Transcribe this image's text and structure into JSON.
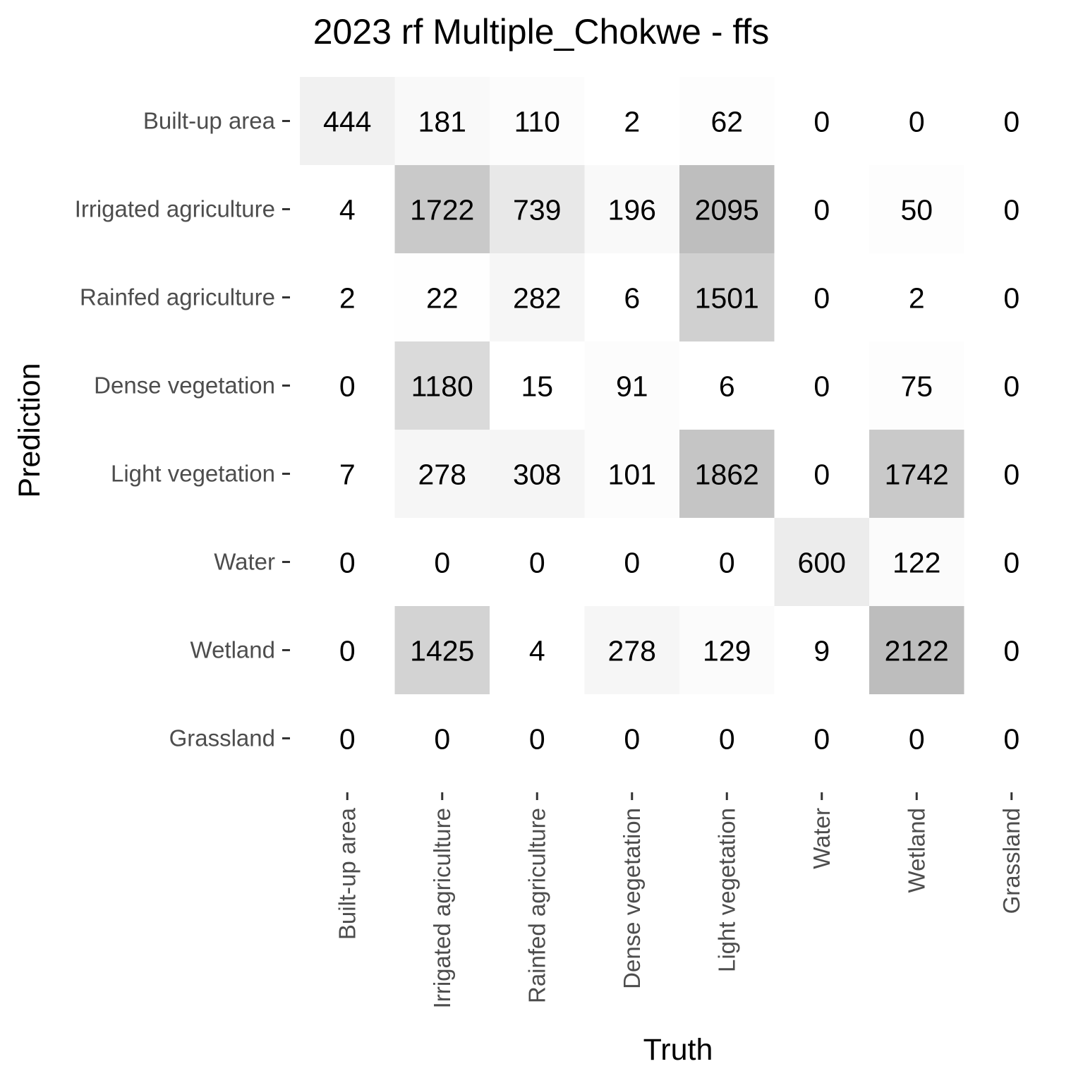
{
  "chart_data": {
    "type": "heatmap",
    "title": "2023 rf Multiple_Chokwe - ffs",
    "xlabel": "Truth",
    "ylabel": "Prediction",
    "x_categories": [
      "Built-up area",
      "Irrigated agriculture",
      "Rainfed agriculture",
      "Dense vegetation",
      "Light vegetation",
      "Water",
      "Wetland",
      "Grassland"
    ],
    "y_categories": [
      "Built-up area",
      "Irrigated agriculture",
      "Rainfed agriculture",
      "Dense vegetation",
      "Light vegetation",
      "Water",
      "Wetland",
      "Grassland"
    ],
    "values": [
      [
        444,
        181,
        110,
        2,
        62,
        0,
        0,
        0
      ],
      [
        4,
        1722,
        739,
        196,
        2095,
        0,
        50,
        0
      ],
      [
        2,
        22,
        282,
        6,
        1501,
        0,
        2,
        0
      ],
      [
        0,
        1180,
        15,
        91,
        6,
        0,
        75,
        0
      ],
      [
        7,
        278,
        308,
        101,
        1862,
        0,
        1742,
        0
      ],
      [
        0,
        0,
        0,
        0,
        0,
        600,
        122,
        0
      ],
      [
        0,
        1425,
        4,
        278,
        129,
        9,
        2122,
        0
      ],
      [
        0,
        0,
        0,
        0,
        0,
        0,
        0,
        0
      ]
    ],
    "color_scale": {
      "low": "#ffffff",
      "high": "#bdbdbd"
    },
    "grid": false,
    "legend": "none"
  }
}
